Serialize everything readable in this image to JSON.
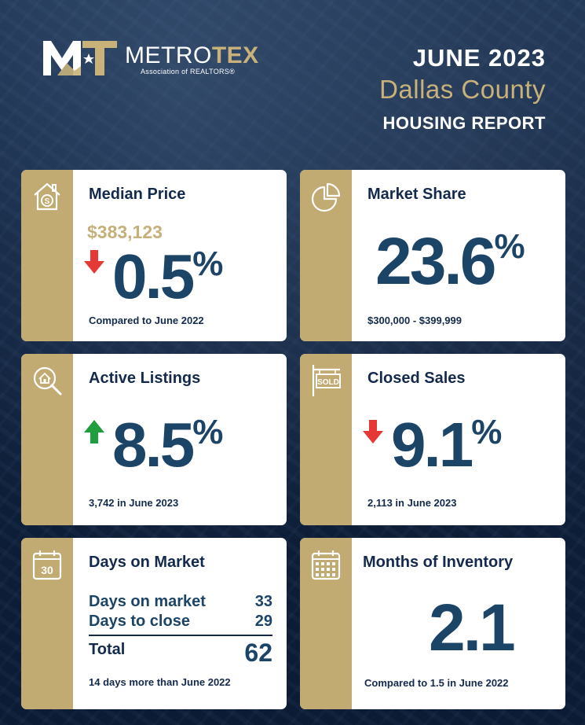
{
  "brand": {
    "name_a": "METRO",
    "name_b": "TEX",
    "subtitle": "Association of REALTORS®"
  },
  "header": {
    "date": "JUNE 2023",
    "county": "Dallas County",
    "report": "HOUSING REPORT"
  },
  "colors": {
    "navy": "#0f2341",
    "gold": "#c2ab72",
    "value_blue": "#1c4467",
    "arrow_down": "#e53935",
    "arrow_up": "#1e9e3e"
  },
  "cards": {
    "median": {
      "icon": "house-dollar-icon",
      "title": "Median Price",
      "price": "$383,123",
      "direction": "down",
      "value": "0.5",
      "unit": "%",
      "note": "Compared to June 2022"
    },
    "share": {
      "icon": "pie-chart-icon",
      "title": "Market Share",
      "value": "23.6",
      "unit": "%",
      "note": "$300,000 - $399,999"
    },
    "active": {
      "icon": "magnifier-house-icon",
      "title": "Active Listings",
      "direction": "up",
      "value": "8.5",
      "unit": "%",
      "note": "3,742 in June 2023"
    },
    "closed": {
      "icon": "sold-sign-icon",
      "title": "Closed Sales",
      "direction": "down",
      "value": "9.1",
      "unit": "%",
      "note": "2,113 in June 2023"
    },
    "dom": {
      "icon": "calendar-30-icon",
      "icon_text": "30",
      "title": "Days on Market",
      "rows": [
        {
          "label": "Days on market",
          "value": "33"
        },
        {
          "label": "Days to close",
          "value": "29"
        }
      ],
      "total_label": "Total",
      "total_value": "62",
      "note": "14 days more than June 2022"
    },
    "moi": {
      "icon": "calendar-grid-icon",
      "title": "Months of Inventory",
      "value": "2.1",
      "note": "Compared to 1.5 in June 2022"
    }
  }
}
